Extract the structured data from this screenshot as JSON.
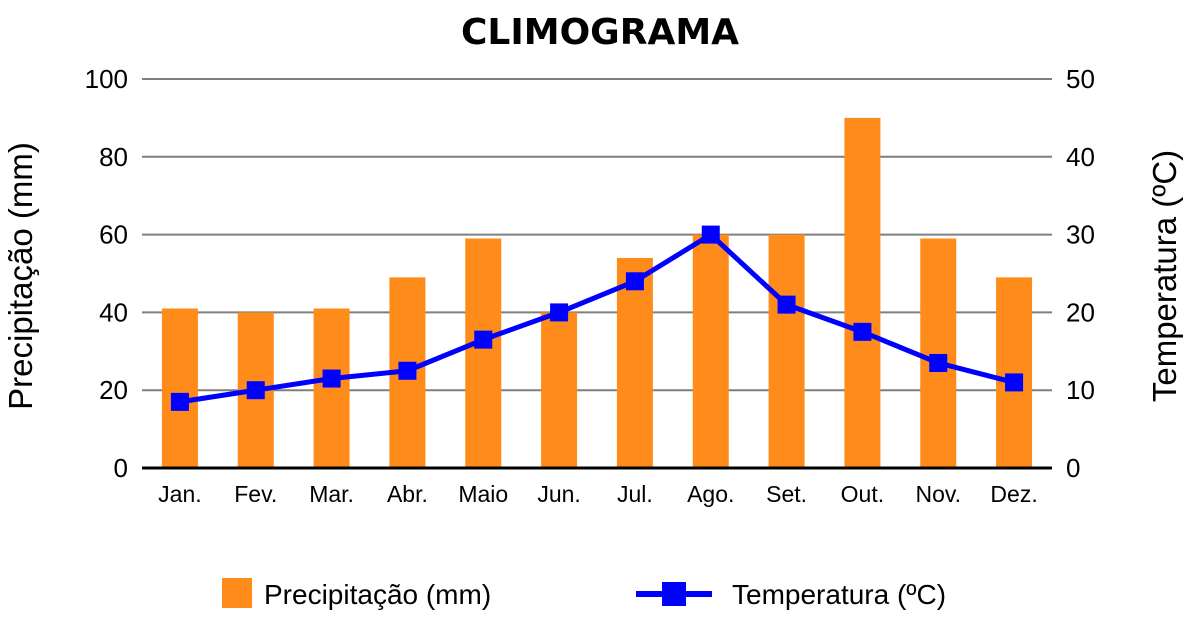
{
  "chart_data": {
    "type": "bar+line",
    "title": "CLIMOGRAMA",
    "categories": [
      "Jan.",
      "Fev.",
      "Mar.",
      "Abr.",
      "Maio",
      "Jun.",
      "Jul.",
      "Ago.",
      "Set.",
      "Out.",
      "Nov.",
      "Dez."
    ],
    "series": [
      {
        "name": "Precipitação (mm)",
        "type": "bar",
        "axis": "left",
        "color": "#ff8c1a",
        "values": [
          41,
          40,
          41,
          49,
          59,
          40,
          54,
          60,
          60,
          90,
          59,
          49
        ]
      },
      {
        "name": "Temperatura (ºC)",
        "type": "line",
        "axis": "right",
        "color": "#0000ff",
        "marker": "square",
        "values": [
          8.5,
          10,
          11.5,
          12.5,
          16.5,
          20,
          24,
          30,
          21,
          17.5,
          13.5,
          11
        ]
      }
    ],
    "y_left": {
      "label": "Precipitação (mm)",
      "range": [
        0,
        100
      ],
      "ticks": [
        "0",
        "20",
        "40",
        "60",
        "80",
        "100"
      ]
    },
    "y_right": {
      "label": "Temperatura (ºC)",
      "range": [
        0,
        50
      ],
      "ticks": [
        "0",
        "10",
        "20",
        "30",
        "40",
        "50"
      ]
    },
    "grid": true,
    "legend_position": "bottom"
  }
}
